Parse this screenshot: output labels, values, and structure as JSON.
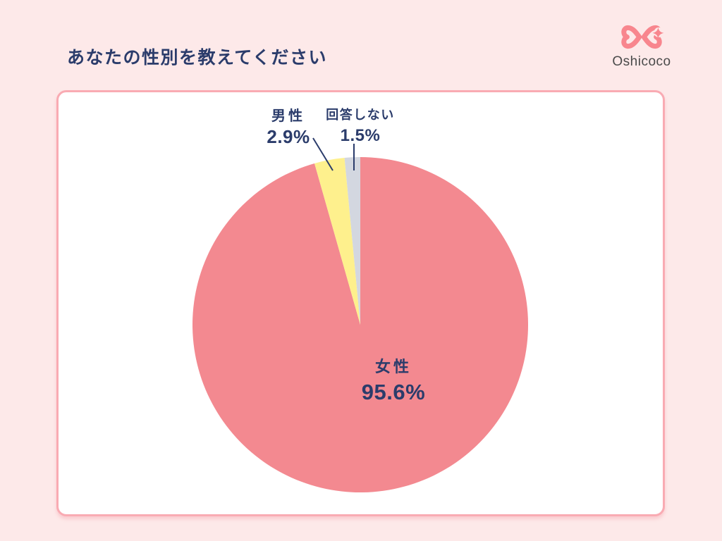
{
  "header": {
    "title": "あなたの性別を教えてください",
    "logo_text": "Oshicoco"
  },
  "colors": {
    "background": "#FDE9E9",
    "card_background": "#FFFFFF",
    "card_border": "#F9ABB3",
    "text_navy": "#2B3C6B",
    "logo_pink": "#F8868E",
    "logo_text_gray": "#4A4A4A",
    "leader_line": "#2B3C6B"
  },
  "chart_data": {
    "type": "pie",
    "title": "あなたの性別を教えてください",
    "labels": [
      "女性",
      "男性",
      "回答しない"
    ],
    "values": [
      95.6,
      2.9,
      1.5
    ],
    "value_labels": [
      "95.6%",
      "2.9%",
      "1.5%"
    ],
    "colors": [
      "#F38990",
      "#FEF08D",
      "#D3D7E0"
    ],
    "start_angle_deg": 0,
    "direction": "clockwise",
    "legend_position": "none",
    "label_placement": "female inside slice; male and no-answer outside top with leader lines"
  }
}
